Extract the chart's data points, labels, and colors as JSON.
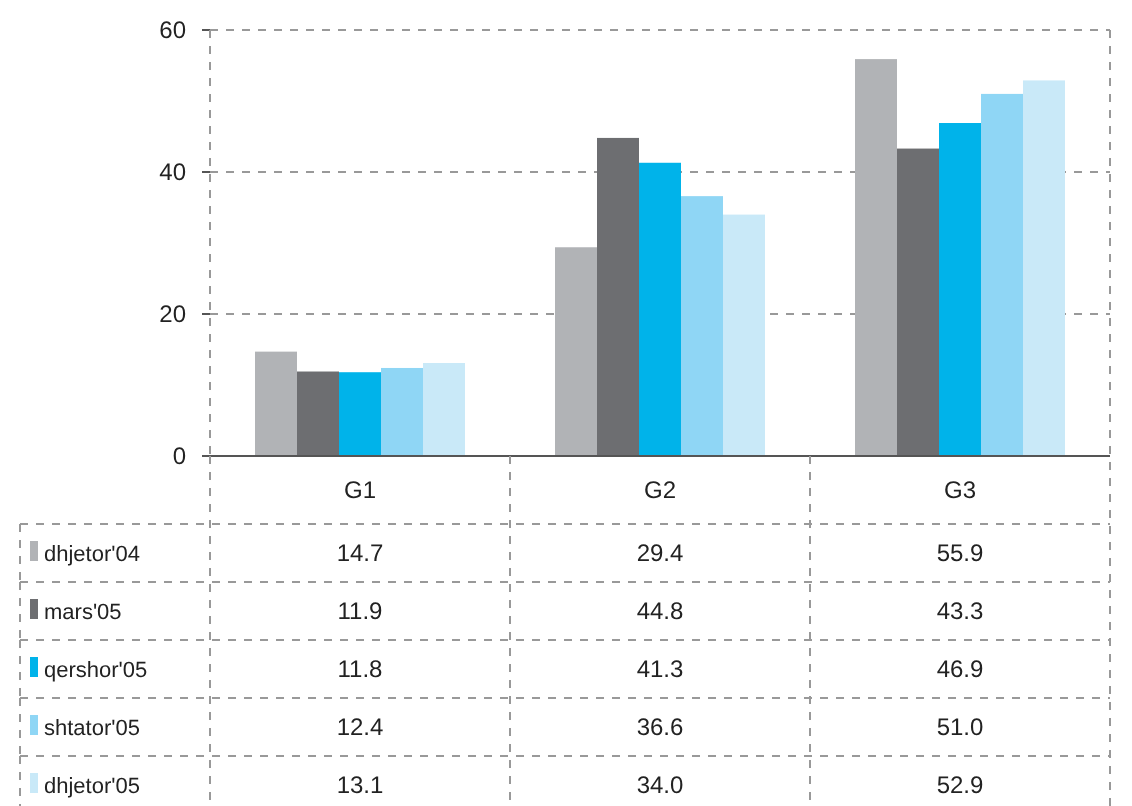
{
  "chart_data": {
    "type": "bar",
    "categories": [
      "G1",
      "G2",
      "G3"
    ],
    "series": [
      {
        "name": "dhjetor'04",
        "color": "#b1b3b6",
        "values": [
          14.7,
          29.4,
          55.9
        ],
        "value_labels": [
          "14.7",
          "29.4",
          "55.9"
        ]
      },
      {
        "name": "mars'05",
        "color": "#6d6e71",
        "values": [
          11.9,
          44.8,
          43.3
        ],
        "value_labels": [
          "11.9",
          "44.8",
          "43.3"
        ]
      },
      {
        "name": "qershor'05",
        "color": "#00b3ea",
        "values": [
          11.8,
          41.3,
          46.9
        ],
        "value_labels": [
          "11.8",
          "41.3",
          "46.9"
        ]
      },
      {
        "name": "shtator'05",
        "color": "#8fd6f5",
        "values": [
          12.4,
          36.6,
          51.0
        ],
        "value_labels": [
          "12.4",
          "36.6",
          "51.0"
        ]
      },
      {
        "name": "dhjetor'05",
        "color": "#c9e9f8",
        "values": [
          13.1,
          34.0,
          52.9
        ],
        "value_labels": [
          "13.1",
          "34.0",
          "52.9"
        ]
      }
    ],
    "ylim": [
      0,
      60
    ],
    "yticks": [
      0,
      20,
      40,
      60
    ],
    "grid": true,
    "legend": "bottom left"
  }
}
